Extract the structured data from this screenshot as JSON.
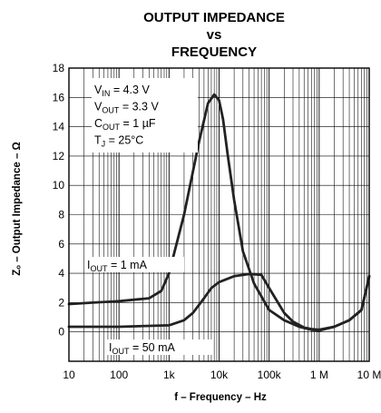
{
  "chart_data": {
    "type": "line",
    "title_lines": [
      "OUTPUT IMPEDANCE",
      "vs",
      "FREQUENCY"
    ],
    "xlabel": "f – Frequency – Hz",
    "ylabel": "Zₒ – Output Impedance – Ω",
    "x_scale": "log",
    "xlim": [
      10,
      10000000
    ],
    "ylim": [
      -2,
      18
    ],
    "x_ticks": [
      10,
      100,
      1000,
      10000,
      100000,
      1000000,
      10000000
    ],
    "x_tick_labels": [
      "10",
      "100",
      "1k",
      "10k",
      "100k",
      "1 M",
      "10 M"
    ],
    "y_ticks": [
      0,
      2,
      4,
      6,
      8,
      10,
      12,
      14,
      16,
      18
    ],
    "y_tick_labels": [
      "0",
      "2",
      "4",
      "6",
      "8",
      "10",
      "12",
      "14",
      "16",
      "18"
    ],
    "grid": true,
    "conditions": [
      {
        "main": "V",
        "sub": "IN",
        "rest": " = 4.3 V"
      },
      {
        "main": "V",
        "sub": "OUT",
        "rest": " = 3.3 V"
      },
      {
        "main": "C",
        "sub": "OUT",
        "rest": " = 1 µF"
      },
      {
        "main": "T",
        "sub": "J",
        "rest": " = 25°C"
      }
    ],
    "series": [
      {
        "name_main": "I",
        "name_sub": "OUT",
        "name_rest": " = 1 mA",
        "x": [
          10,
          30,
          100,
          200,
          400,
          700,
          1000,
          2000,
          4000,
          6000,
          8000,
          10000,
          12000,
          15000,
          20000,
          30000,
          50000,
          100000,
          200000,
          400000,
          700000,
          1000000,
          2000000,
          4000000,
          7000000,
          10000000
        ],
        "y": [
          1.9,
          2.0,
          2.1,
          2.2,
          2.3,
          2.8,
          4.0,
          8.0,
          13.0,
          15.6,
          16.2,
          15.8,
          14.5,
          12.0,
          9.0,
          5.5,
          3.3,
          1.5,
          0.8,
          0.35,
          0.15,
          0.1,
          0.35,
          0.8,
          1.5,
          3.8
        ]
      },
      {
        "name_main": "I",
        "name_sub": "OUT",
        "name_rest": " = 50 mA",
        "x": [
          10,
          100,
          1000,
          2000,
          3000,
          5000,
          7000,
          10000,
          20000,
          40000,
          70000,
          100000,
          150000,
          200000,
          300000,
          500000,
          700000,
          1000000,
          2000000,
          4000000,
          7000000,
          10000000
        ],
        "y": [
          0.35,
          0.35,
          0.45,
          0.8,
          1.3,
          2.3,
          3.0,
          3.4,
          3.8,
          3.95,
          3.9,
          3.0,
          2.0,
          1.3,
          0.7,
          0.3,
          0.2,
          0.15,
          0.35,
          0.8,
          1.5,
          3.8
        ]
      }
    ]
  }
}
